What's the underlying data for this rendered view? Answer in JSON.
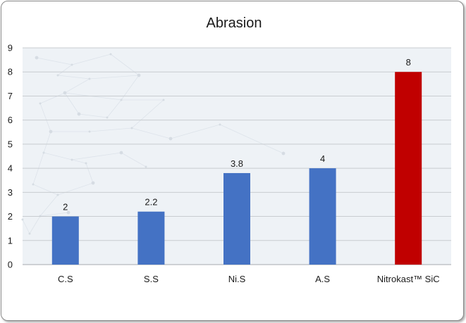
{
  "chart_data": {
    "type": "bar",
    "title": "Abrasion",
    "categories": [
      "C.S",
      "S.S",
      "Ni.S",
      "A.S",
      "Nitrokast™ SiC"
    ],
    "values": [
      2,
      2.2,
      3.8,
      4,
      8
    ],
    "data_labels": [
      "2",
      "2.2",
      "3.8",
      "4",
      "8"
    ],
    "bar_colors": [
      "#4472c4",
      "#4472c4",
      "#4472c4",
      "#4472c4",
      "#c00000"
    ],
    "xlabel": "",
    "ylabel": "",
    "ylim": [
      0,
      9
    ],
    "yticks": [
      "0",
      "1",
      "2",
      "3",
      "4",
      "5",
      "6",
      "7",
      "8",
      "9"
    ],
    "grid": true,
    "legend": "none",
    "plot_background": "#eef2f6",
    "gridline_color": "#c8ccd0"
  }
}
